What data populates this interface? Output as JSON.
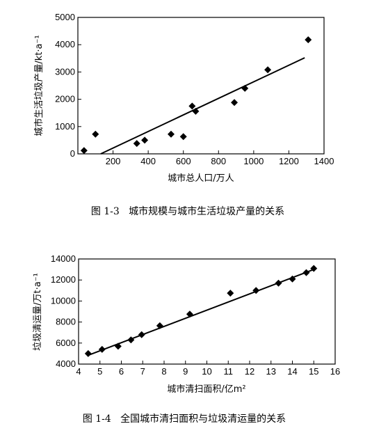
{
  "chart_data": [
    {
      "type": "scatter",
      "xlabel": "城市总人口/万人",
      "ylabel": "城市生活垃圾产量/kt·a⁻¹",
      "caption": "图 1-3   城市规模与城市生活垃圾产量的关系",
      "xlim": [
        0,
        1400
      ],
      "ylim": [
        0,
        5000
      ],
      "xticks": [
        200,
        400,
        600,
        800,
        1000,
        1200,
        1400
      ],
      "yticks": [
        0,
        1000,
        2000,
        3000,
        4000,
        5000
      ],
      "points": [
        {
          "x": 35,
          "y": 120
        },
        {
          "x": 100,
          "y": 720
        },
        {
          "x": 335,
          "y": 380
        },
        {
          "x": 380,
          "y": 500
        },
        {
          "x": 530,
          "y": 720
        },
        {
          "x": 600,
          "y": 630
        },
        {
          "x": 650,
          "y": 1750
        },
        {
          "x": 670,
          "y": 1560
        },
        {
          "x": 890,
          "y": 1880
        },
        {
          "x": 950,
          "y": 2400
        },
        {
          "x": 1080,
          "y": 3080
        },
        {
          "x": 1310,
          "y": 4180
        }
      ],
      "trendline": [
        {
          "x": 130,
          "y": 0
        },
        {
          "x": 1290,
          "y": 3520
        }
      ],
      "legend": "none",
      "grid": false
    },
    {
      "type": "scatter",
      "xlabel": "城市清扫面积/亿m²",
      "ylabel": "垃圾清运量/万t·a⁻¹",
      "caption": "图 1-4   全国城市清扫面积与垃圾清运量的关系",
      "xlim": [
        4,
        16
      ],
      "ylim": [
        4000,
        14000
      ],
      "xticks": [
        4,
        5,
        6,
        7,
        8,
        9,
        10,
        11,
        12,
        13,
        14,
        15,
        16
      ],
      "yticks": [
        4000,
        6000,
        8000,
        10000,
        12000,
        14000
      ],
      "points": [
        {
          "x": 4.45,
          "y": 5000
        },
        {
          "x": 5.1,
          "y": 5400
        },
        {
          "x": 5.85,
          "y": 5700
        },
        {
          "x": 6.45,
          "y": 6300
        },
        {
          "x": 6.95,
          "y": 6800
        },
        {
          "x": 7.8,
          "y": 7650
        },
        {
          "x": 9.2,
          "y": 8750
        },
        {
          "x": 11.1,
          "y": 10750
        },
        {
          "x": 12.3,
          "y": 11000
        },
        {
          "x": 13.35,
          "y": 11700
        },
        {
          "x": 14.0,
          "y": 12100
        },
        {
          "x": 14.65,
          "y": 12700
        },
        {
          "x": 15.0,
          "y": 13100
        }
      ],
      "trendline": [
        {
          "x": 4.4,
          "y": 4800
        },
        {
          "x": 15.0,
          "y": 13000
        }
      ],
      "legend": "none",
      "grid": false
    }
  ]
}
